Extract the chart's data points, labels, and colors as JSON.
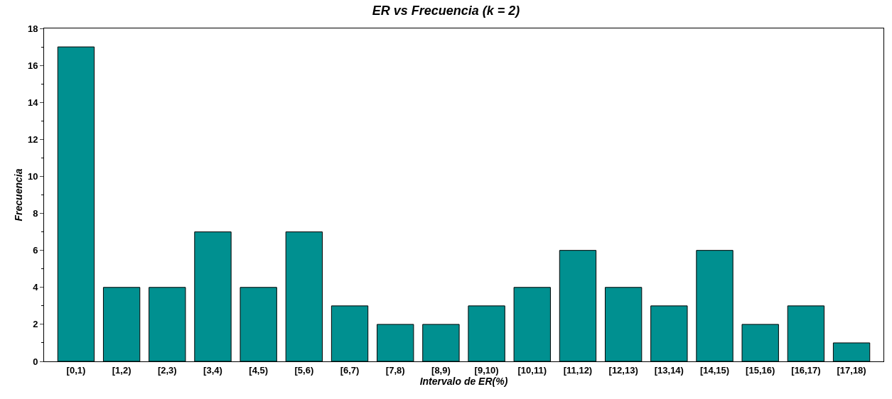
{
  "chart_data": {
    "type": "bar",
    "title": "ER vs Frecuencia (k = 2)",
    "xlabel": "Intervalo de ER(%)",
    "ylabel": "Frecuencia",
    "categories": [
      "[0,1)",
      "[1,2)",
      "[2,3)",
      "[3,4)",
      "[4,5)",
      "[5,6)",
      "[6,7)",
      "[7,8)",
      "[8,9)",
      "[9,10)",
      "[10,11)",
      "[11,12)",
      "[12,13)",
      "[13,14)",
      "[14,15)",
      "[15,16)",
      "[16,17)",
      "[17,18)"
    ],
    "values": [
      17,
      4,
      4,
      7,
      4,
      7,
      3,
      2,
      2,
      3,
      4,
      6,
      4,
      3,
      6,
      2,
      3,
      1
    ],
    "color": "#009090",
    "ylim": [
      0,
      18
    ],
    "yticks": [
      0,
      2,
      4,
      6,
      8,
      10,
      12,
      14,
      16,
      18
    ]
  }
}
